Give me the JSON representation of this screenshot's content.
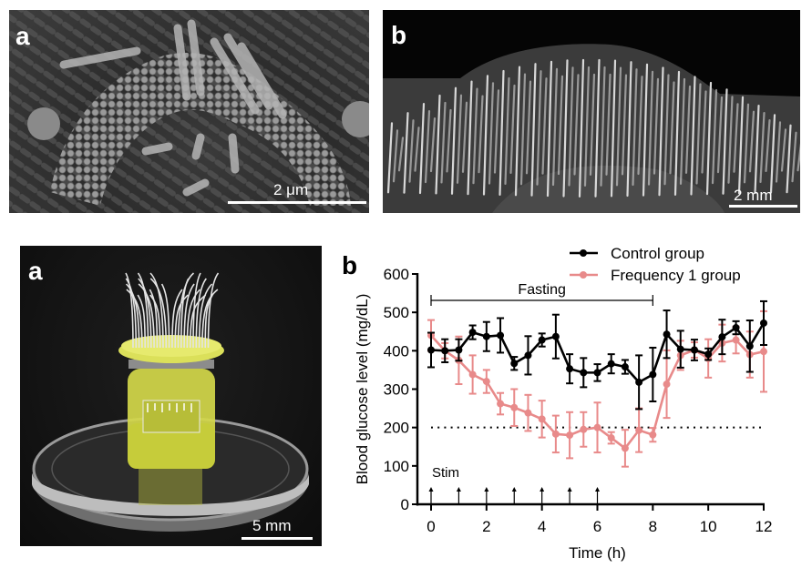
{
  "figure": {
    "top_left": {
      "label": "a",
      "scale_bar": "2 μm",
      "description": "SEM image of stereocilia bundle"
    },
    "top_right": {
      "label": "b",
      "scale_bar": "2 mm",
      "description": "micropillar array"
    },
    "bottom_left": {
      "label": "a",
      "scale_bar": "5 mm",
      "description": "yellow device with filaments on coin"
    },
    "bottom_right": {
      "label": "b"
    }
  },
  "chart_data": {
    "type": "line",
    "title": "",
    "xlabel": "Time (h)",
    "ylabel": "Blood glucose level (mg/dL)",
    "xlim": [
      0,
      12
    ],
    "ylim": [
      0,
      600
    ],
    "xticks": [
      0,
      2,
      4,
      6,
      8,
      10,
      12
    ],
    "yticks": [
      0,
      100,
      200,
      300,
      400,
      500,
      600
    ],
    "grid": false,
    "legend_position": "top-right",
    "x": [
      0,
      0.5,
      1,
      1.5,
      2,
      2.5,
      3,
      3.5,
      4,
      4.5,
      5,
      5.5,
      6,
      6.5,
      7,
      7.5,
      8,
      8.5,
      9,
      9.5,
      10,
      10.5,
      11,
      11.5,
      12
    ],
    "series": [
      {
        "name": "Control group",
        "color": "#000000",
        "values": [
          402,
          400,
          402,
          448,
          437,
          440,
          367,
          388,
          428,
          437,
          353,
          343,
          343,
          366,
          358,
          318,
          338,
          443,
          404,
          402,
          391,
          436,
          460,
          412,
          472
        ],
        "errors": [
          45,
          30,
          28,
          18,
          38,
          45,
          17,
          50,
          17,
          57,
          38,
          38,
          22,
          25,
          18,
          70,
          70,
          62,
          48,
          27,
          15,
          45,
          17,
          67,
          57
        ]
      },
      {
        "name": "Frequency 1 group",
        "color": "#e88a8a",
        "values": [
          440,
          400,
          375,
          338,
          320,
          262,
          252,
          238,
          222,
          183,
          180,
          195,
          200,
          173,
          146,
          193,
          181,
          313,
          388,
          402,
          380,
          420,
          428,
          390,
          398
        ]
      }
    ],
    "series_errors_freq": [
      40,
      20,
      62,
      50,
      30,
      28,
      48,
      47,
      48,
      48,
      60,
      45,
      65,
      15,
      48,
      57,
      18,
      88,
      38,
      20,
      50,
      48,
      35,
      60,
      105
    ],
    "annotations": {
      "fasting_label": "Fasting",
      "fasting_range": [
        0,
        8
      ],
      "threshold_value": 200,
      "stim_label": "Stim",
      "stim_times": [
        0,
        1,
        2,
        3,
        4,
        5,
        6
      ]
    }
  }
}
